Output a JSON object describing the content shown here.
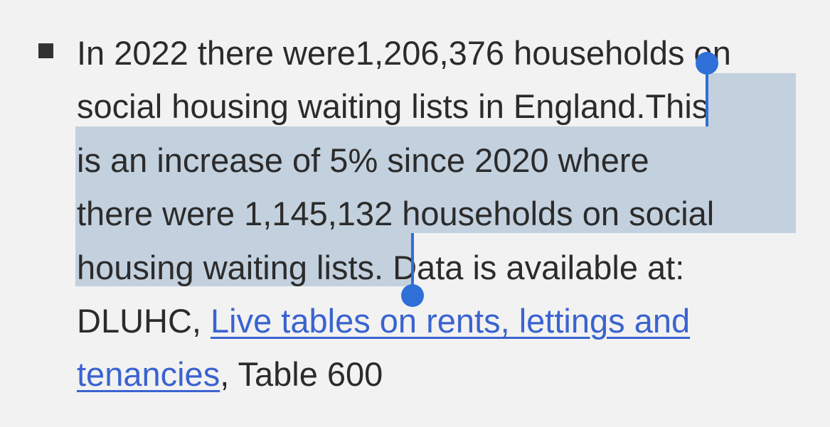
{
  "paragraph": {
    "line1": "In 2022 there were1,206,376 households on",
    "line2_unselected": "social housing waiting lists in England.",
    "line2_selected": "This",
    "line3": "is an increase of 5% since 2020 where",
    "line4": "there were 1,145,132 households on social",
    "line5_selected": "housing waiting lists",
    "line5_unselected": ". Data is available at:",
    "line6_prefix": "DLUHC, ",
    "link_part1": "Live tables on rents, lettings and",
    "link_part2": "tenancies",
    "line7_suffix": ", Table 600"
  },
  "colors": {
    "background": "#f2f2f2",
    "text": "#2b2b2b",
    "selection": "#c3d0de",
    "handle": "#2f6fd8",
    "link": "#3a63cf"
  }
}
